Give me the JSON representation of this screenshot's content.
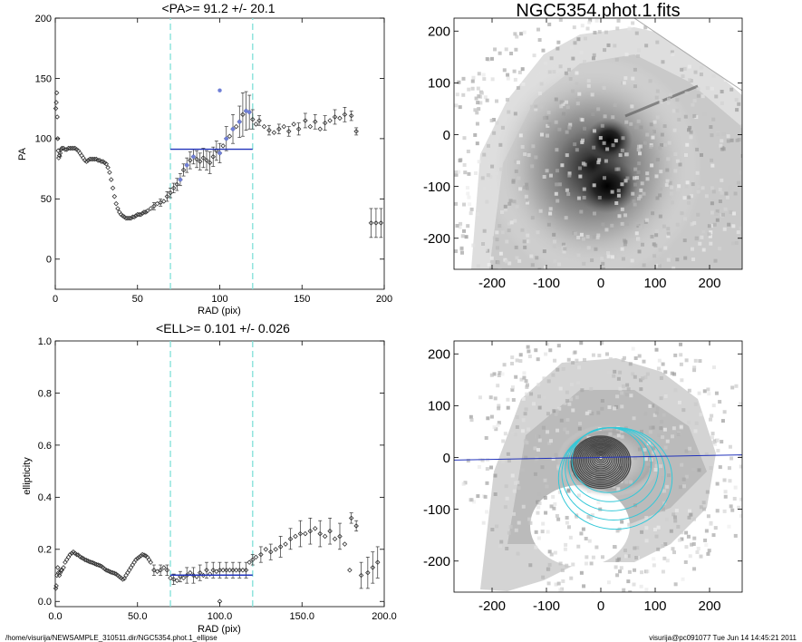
{
  "footer": {
    "path": "/home/visurija/NEWSAMPLE_310511.dir/NGC5354.phot.1_ellipse",
    "stamp": "visurija@pc091077  Tue Jun 14 14:45:21 2011"
  },
  "colors": {
    "fit": "#2233bb",
    "band": "#7fe0d8",
    "ellipses": "#33c8d8",
    "points": "#333333",
    "highlight": "#6f7fd6"
  },
  "chart_data": [
    {
      "id": "pa",
      "type": "scatter",
      "title": "<PA>=  91.2 +/-  20.1",
      "xlabel": "RAD (pix)",
      "ylabel": "PA",
      "xlim": [
        0,
        200
      ],
      "ylim": [
        -25,
        200
      ],
      "xticks": [
        0,
        50,
        100,
        150,
        200
      ],
      "yticks": [
        0,
        50,
        100,
        150,
        200
      ],
      "band": [
        70,
        120
      ],
      "fit": {
        "x": [
          70,
          120
        ],
        "y": 91.2
      },
      "points": [
        [
          0.3,
          125
        ],
        [
          0.6,
          130
        ],
        [
          0.9,
          138
        ],
        [
          1.2,
          118
        ],
        [
          1.5,
          100
        ],
        [
          1.8,
          90
        ],
        [
          2.1,
          84
        ],
        [
          2.5,
          86
        ],
        [
          3,
          88
        ],
        [
          3.5,
          91
        ],
        [
          4,
          92
        ],
        [
          5,
          92
        ],
        [
          6,
          91
        ],
        [
          7,
          91
        ],
        [
          8,
          92
        ],
        [
          9,
          92
        ],
        [
          10,
          92
        ],
        [
          11,
          92
        ],
        [
          12,
          92
        ],
        [
          13,
          91
        ],
        [
          14,
          90
        ],
        [
          15,
          88
        ],
        [
          16,
          86
        ],
        [
          17,
          84
        ],
        [
          18,
          82
        ],
        [
          19,
          81
        ],
        [
          20,
          82
        ],
        [
          21,
          83
        ],
        [
          22,
          83
        ],
        [
          23,
          83
        ],
        [
          24,
          83
        ],
        [
          25,
          83
        ],
        [
          26,
          82
        ],
        [
          27,
          82
        ],
        [
          28,
          81
        ],
        [
          29,
          81
        ],
        [
          30,
          80
        ],
        [
          31,
          79
        ],
        [
          32,
          76
        ],
        [
          33,
          72
        ],
        [
          34,
          66
        ],
        [
          35,
          59
        ],
        [
          36,
          52
        ],
        [
          37,
          46
        ],
        [
          38,
          42
        ],
        [
          39,
          39
        ],
        [
          40,
          37
        ],
        [
          41,
          36
        ],
        [
          42,
          35
        ],
        [
          43,
          34
        ],
        [
          44,
          34
        ],
        [
          45,
          34
        ],
        [
          46,
          34
        ],
        [
          47,
          35
        ],
        [
          48,
          35
        ],
        [
          49,
          36
        ],
        [
          50,
          37
        ],
        [
          51,
          37
        ],
        [
          52,
          37
        ],
        [
          53,
          38
        ],
        [
          54,
          39
        ],
        [
          55,
          39
        ],
        [
          56,
          40
        ],
        [
          58,
          42
        ],
        [
          60,
          44
        ],
        [
          62,
          46
        ],
        [
          64,
          47
        ],
        [
          66,
          48
        ],
        [
          68,
          52
        ],
        [
          70,
          55
        ],
        [
          72,
          59
        ],
        [
          74,
          62
        ],
        [
          76,
          66
        ],
        [
          78,
          74
        ],
        [
          80,
          78
        ],
        [
          82,
          82
        ],
        [
          84,
          85
        ],
        [
          86,
          83
        ],
        [
          88,
          81
        ],
        [
          90,
          84
        ],
        [
          92,
          82
        ],
        [
          94,
          80
        ],
        [
          96,
          85
        ],
        [
          98,
          90
        ],
        [
          100,
          88
        ],
        [
          102,
          94
        ],
        [
          104,
          100
        ],
        [
          106,
          102
        ],
        [
          108,
          108
        ],
        [
          110,
          110
        ],
        [
          112,
          114
        ],
        [
          114,
          120
        ],
        [
          116,
          123
        ],
        [
          118,
          122
        ],
        [
          120,
          116
        ],
        [
          122,
          112
        ],
        [
          124,
          115
        ],
        [
          127,
          110
        ],
        [
          130,
          107
        ],
        [
          133,
          105
        ],
        [
          136,
          108
        ],
        [
          139,
          110
        ],
        [
          142,
          106
        ],
        [
          145,
          112
        ],
        [
          148,
          108
        ],
        [
          152,
          115
        ],
        [
          155,
          110
        ],
        [
          158,
          114
        ],
        [
          161,
          108
        ],
        [
          164,
          113
        ],
        [
          167,
          115
        ],
        [
          170,
          118
        ],
        [
          173,
          117
        ],
        [
          176,
          120
        ],
        [
          180,
          119
        ],
        [
          183,
          106
        ],
        [
          192,
          30
        ],
        [
          195,
          30
        ],
        [
          198,
          30
        ]
      ],
      "errors": [
        [
          2,
          4
        ],
        [
          3,
          3
        ],
        [
          60,
          3
        ],
        [
          64,
          3
        ],
        [
          68,
          4
        ],
        [
          70,
          4
        ],
        [
          72,
          4
        ],
        [
          74,
          5
        ],
        [
          76,
          5
        ],
        [
          78,
          5
        ],
        [
          80,
          6
        ],
        [
          82,
          7
        ],
        [
          84,
          6
        ],
        [
          86,
          7
        ],
        [
          88,
          7
        ],
        [
          90,
          8
        ],
        [
          92,
          8
        ],
        [
          94,
          9
        ],
        [
          96,
          8
        ],
        [
          98,
          8
        ],
        [
          100,
          8
        ],
        [
          104,
          10
        ],
        [
          108,
          12
        ],
        [
          112,
          13
        ],
        [
          114,
          18
        ],
        [
          116,
          16
        ],
        [
          118,
          14
        ],
        [
          120,
          8
        ],
        [
          124,
          4
        ],
        [
          130,
          4
        ],
        [
          136,
          4
        ],
        [
          142,
          4
        ],
        [
          148,
          5
        ],
        [
          152,
          6
        ],
        [
          158,
          6
        ],
        [
          164,
          6
        ],
        [
          170,
          6
        ],
        [
          176,
          6
        ],
        [
          180,
          4
        ],
        [
          183,
          3
        ],
        [
          192,
          12
        ],
        [
          195,
          12
        ],
        [
          198,
          12
        ]
      ],
      "highlighted": [
        [
          100,
          140
        ],
        [
          76,
          66
        ],
        [
          80,
          78
        ],
        [
          84,
          85
        ],
        [
          100,
          88
        ],
        [
          104,
          100
        ],
        [
          108,
          108
        ],
        [
          112,
          114
        ],
        [
          116,
          123
        ],
        [
          118,
          122
        ]
      ]
    },
    {
      "id": "ell",
      "type": "scatter",
      "title": "<ELL>= 0.101 +/-  0.026",
      "xlabel": "RAD (pix)",
      "ylabel": "ellipticity",
      "xlim": [
        0,
        200
      ],
      "ylim": [
        -0.02,
        1.0
      ],
      "xticks": [
        0,
        50,
        100,
        150,
        200
      ],
      "yticks": [
        0.0,
        0.2,
        0.4,
        0.6,
        0.8,
        1.0
      ],
      "band": [
        70,
        120
      ],
      "fit": {
        "x": [
          70,
          120
        ],
        "y": 0.101
      },
      "points": [
        [
          0.3,
          0.05
        ],
        [
          0.6,
          0.06
        ],
        [
          1,
          0.1
        ],
        [
          1.5,
          0.13
        ],
        [
          2,
          0.11
        ],
        [
          2.5,
          0.1
        ],
        [
          3,
          0.11
        ],
        [
          3.5,
          0.12
        ],
        [
          4,
          0.12
        ],
        [
          5,
          0.13
        ],
        [
          6,
          0.15
        ],
        [
          7,
          0.16
        ],
        [
          8,
          0.17
        ],
        [
          9,
          0.18
        ],
        [
          10,
          0.185
        ],
        [
          11,
          0.19
        ],
        [
          12,
          0.185
        ],
        [
          13,
          0.18
        ],
        [
          14,
          0.178
        ],
        [
          15,
          0.172
        ],
        [
          16,
          0.168
        ],
        [
          17,
          0.165
        ],
        [
          18,
          0.16
        ],
        [
          19,
          0.158
        ],
        [
          20,
          0.155
        ],
        [
          21,
          0.152
        ],
        [
          22,
          0.15
        ],
        [
          23,
          0.148
        ],
        [
          24,
          0.145
        ],
        [
          25,
          0.142
        ],
        [
          26,
          0.14
        ],
        [
          27,
          0.138
        ],
        [
          28,
          0.135
        ],
        [
          29,
          0.13
        ],
        [
          30,
          0.125
        ],
        [
          31,
          0.12
        ],
        [
          32,
          0.118
        ],
        [
          33,
          0.115
        ],
        [
          34,
          0.112
        ],
        [
          35,
          0.11
        ],
        [
          36,
          0.108
        ],
        [
          37,
          0.105
        ],
        [
          38,
          0.1
        ],
        [
          39,
          0.095
        ],
        [
          40,
          0.09
        ],
        [
          41,
          0.085
        ],
        [
          42,
          0.088
        ],
        [
          43,
          0.1
        ],
        [
          44,
          0.11
        ],
        [
          45,
          0.12
        ],
        [
          46,
          0.13
        ],
        [
          47,
          0.14
        ],
        [
          48,
          0.15
        ],
        [
          49,
          0.16
        ],
        [
          50,
          0.165
        ],
        [
          51,
          0.17
        ],
        [
          52,
          0.175
        ],
        [
          53,
          0.18
        ],
        [
          54,
          0.178
        ],
        [
          55,
          0.175
        ],
        [
          56,
          0.17
        ],
        [
          57,
          0.16
        ],
        [
          58,
          0.15
        ],
        [
          60,
          0.12
        ],
        [
          62,
          0.115
        ],
        [
          64,
          0.12
        ],
        [
          66,
          0.13
        ],
        [
          68,
          0.12
        ],
        [
          70,
          0.09
        ],
        [
          72,
          0.085
        ],
        [
          74,
          0.08
        ],
        [
          76,
          0.095
        ],
        [
          78,
          0.09
        ],
        [
          80,
          0.1
        ],
        [
          82,
          0.11
        ],
        [
          84,
          0.1
        ],
        [
          86,
          0.095
        ],
        [
          88,
          0.11
        ],
        [
          90,
          0.1
        ],
        [
          92,
          0.12
        ],
        [
          94,
          0.105
        ],
        [
          96,
          0.12
        ],
        [
          98,
          0.115
        ],
        [
          100,
          0.12
        ],
        [
          102,
          0.12
        ],
        [
          104,
          0.12
        ],
        [
          106,
          0.12
        ],
        [
          108,
          0.12
        ],
        [
          110,
          0.12
        ],
        [
          112,
          0.12
        ],
        [
          114,
          0.12
        ],
        [
          116,
          0.12
        ],
        [
          118,
          0.15
        ],
        [
          120,
          0.16
        ],
        [
          122,
          0.17
        ],
        [
          125,
          0.18
        ],
        [
          128,
          0.2
        ],
        [
          131,
          0.19
        ],
        [
          134,
          0.2
        ],
        [
          137,
          0.21
        ],
        [
          140,
          0.22
        ],
        [
          143,
          0.24
        ],
        [
          146,
          0.25
        ],
        [
          149,
          0.26
        ],
        [
          152,
          0.26
        ],
        [
          155,
          0.27
        ],
        [
          158,
          0.28
        ],
        [
          161,
          0.26
        ],
        [
          164,
          0.25
        ],
        [
          167,
          0.27
        ],
        [
          170,
          0.24
        ],
        [
          173,
          0.25
        ],
        [
          176,
          0.22
        ],
        [
          180,
          0.32
        ],
        [
          183,
          0.29
        ],
        [
          186,
          0.1
        ],
        [
          190,
          0.11
        ],
        [
          193,
          0.13
        ],
        [
          196,
          0.15
        ],
        [
          179,
          0.12
        ],
        [
          100,
          0.0
        ]
      ],
      "errors": [
        [
          60,
          0.02
        ],
        [
          64,
          0.02
        ],
        [
          68,
          0.02
        ],
        [
          72,
          0.02
        ],
        [
          76,
          0.02
        ],
        [
          80,
          0.03
        ],
        [
          84,
          0.03
        ],
        [
          88,
          0.03
        ],
        [
          92,
          0.03
        ],
        [
          96,
          0.03
        ],
        [
          100,
          0.03
        ],
        [
          104,
          0.03
        ],
        [
          108,
          0.03
        ],
        [
          112,
          0.03
        ],
        [
          116,
          0.03
        ],
        [
          120,
          0.02
        ],
        [
          125,
          0.03
        ],
        [
          131,
          0.03
        ],
        [
          137,
          0.04
        ],
        [
          143,
          0.04
        ],
        [
          149,
          0.05
        ],
        [
          155,
          0.05
        ],
        [
          161,
          0.05
        ],
        [
          167,
          0.05
        ],
        [
          173,
          0.05
        ],
        [
          180,
          0.02
        ],
        [
          183,
          0.02
        ],
        [
          186,
          0.05
        ],
        [
          190,
          0.06
        ],
        [
          193,
          0.06
        ],
        [
          196,
          0.06
        ]
      ]
    },
    {
      "id": "img1",
      "type": "heatmap",
      "title": "NGC5354.phot.1.fits",
      "xlim": [
        -270,
        260
      ],
      "ylim": [
        -260,
        225
      ],
      "xticks": [
        -200,
        -100,
        0,
        100,
        200
      ],
      "yticks": [
        -200,
        -100,
        0,
        100,
        200
      ]
    },
    {
      "id": "img2",
      "type": "heatmap",
      "title": "",
      "xlim": [
        -270,
        260
      ],
      "ylim": [
        -260,
        225
      ],
      "xticks": [
        -200,
        -100,
        0,
        100,
        200
      ],
      "yticks": [
        -200,
        -100,
        0,
        100,
        200
      ],
      "pa_line": [
        [
          -270,
          -5
        ],
        [
          260,
          5
        ]
      ]
    }
  ]
}
